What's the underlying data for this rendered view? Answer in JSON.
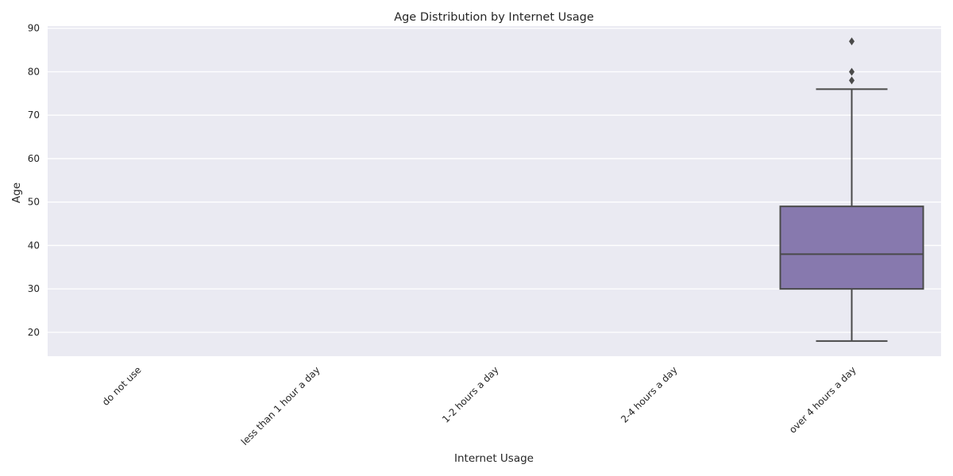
{
  "chart_data": {
    "type": "box",
    "title": "Age Distribution by Internet Usage",
    "xlabel": "Internet Usage",
    "ylabel": "Age",
    "categories": [
      "do not use",
      "less than 1 hour a day",
      "1-2 hours a day",
      "2-4 hours a day",
      "over 4 hours a day"
    ],
    "ylim": [
      14.5,
      90.5
    ],
    "yticks": [
      20,
      30,
      40,
      50,
      60,
      70,
      80,
      90
    ],
    "grid": true,
    "boxes": [
      {
        "category": "do not use",
        "stats": null
      },
      {
        "category": "less than 1 hour a day",
        "stats": null
      },
      {
        "category": "1-2 hours a day",
        "stats": null
      },
      {
        "category": "2-4 hours a day",
        "stats": null
      },
      {
        "category": "over 4 hours a day",
        "stats": {
          "whisker_low": 18,
          "q1": 30,
          "median": 38,
          "q3": 49,
          "whisker_high": 76,
          "outliers": [
            78,
            80,
            87
          ]
        }
      }
    ],
    "colors": {
      "plot_bg": "#EAEAF2",
      "grid": "#FFFFFF",
      "box_fill": "#8779AE",
      "line": "#4A4A4A"
    }
  }
}
